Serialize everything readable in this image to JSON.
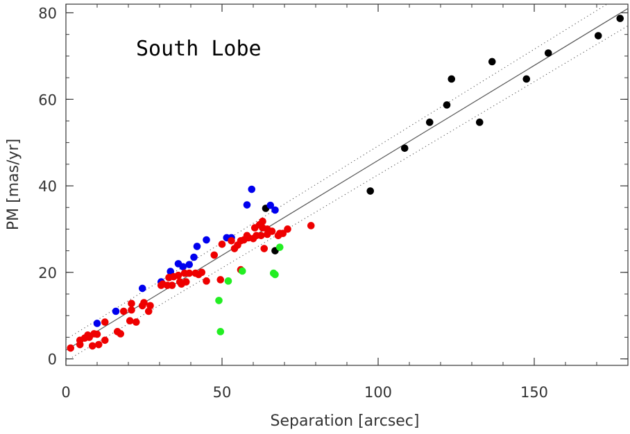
{
  "chart_data": {
    "type": "scatter",
    "title": "",
    "annotation": "South Lobe",
    "xlabel": "Separation [arcsec]",
    "ylabel": "PM [mas/yr]",
    "xlim": [
      0,
      180
    ],
    "ylim": [
      -1.5,
      82
    ],
    "x_ticks": [
      0,
      50,
      100,
      150
    ],
    "y_ticks": [
      0,
      20,
      40,
      60,
      80
    ],
    "x_minor_step": 10,
    "y_minor_step": 5,
    "colors": {
      "red": "#ee0000",
      "blue": "#0000ee",
      "green": "#22ee22",
      "black": "#000000",
      "line": "#555555",
      "axis": "#333333"
    },
    "lines": [
      {
        "name": "fit",
        "style": "solid",
        "points": [
          [
            0,
            2.0
          ],
          [
            180,
            81.0
          ]
        ]
      },
      {
        "name": "upper-bound",
        "style": "dotted",
        "points": [
          [
            0,
            4.5
          ],
          [
            180,
            85.0
          ]
        ]
      },
      {
        "name": "lower-bound",
        "style": "dotted",
        "points": [
          [
            0,
            -0.5
          ],
          [
            180,
            77.0
          ]
        ]
      }
    ],
    "series": [
      {
        "name": "black",
        "color": "#000000",
        "points": [
          [
            64,
            34.8
          ],
          [
            67,
            25.0
          ],
          [
            97.5,
            38.8
          ],
          [
            108.5,
            48.7
          ],
          [
            116.5,
            54.7
          ],
          [
            122,
            58.7
          ],
          [
            123.5,
            64.7
          ],
          [
            132.5,
            54.7
          ],
          [
            136.5,
            68.7
          ],
          [
            147.5,
            64.7
          ],
          [
            154.5,
            70.7
          ],
          [
            170.5,
            74.7
          ],
          [
            177.5,
            78.7
          ]
        ]
      },
      {
        "name": "blue",
        "color": "#0000ee",
        "points": [
          [
            10,
            8.2
          ],
          [
            16,
            11.0
          ],
          [
            24.5,
            16.3
          ],
          [
            30.5,
            17.8
          ],
          [
            33.5,
            20.2
          ],
          [
            36,
            22.0
          ],
          [
            37.5,
            21.3
          ],
          [
            39.5,
            21.8
          ],
          [
            41,
            23.5
          ],
          [
            42,
            26.0
          ],
          [
            45,
            27.5
          ],
          [
            51.5,
            28.0
          ],
          [
            53,
            28.0
          ],
          [
            58,
            35.6
          ],
          [
            59.5,
            39.2
          ],
          [
            65.5,
            35.5
          ],
          [
            67,
            34.4
          ]
        ]
      },
      {
        "name": "red",
        "color": "#ee0000",
        "points": [
          [
            1.5,
            2.5
          ],
          [
            4.5,
            3.3
          ],
          [
            4.5,
            4.3
          ],
          [
            6,
            4.8
          ],
          [
            7,
            5.5
          ],
          [
            7.5,
            5.0
          ],
          [
            8.5,
            3.0
          ],
          [
            9,
            5.8
          ],
          [
            10,
            5.7
          ],
          [
            10.5,
            3.3
          ],
          [
            12.5,
            8.5
          ],
          [
            12.5,
            4.3
          ],
          [
            16.5,
            6.3
          ],
          [
            17.5,
            5.8
          ],
          [
            18.5,
            11.0
          ],
          [
            20.5,
            8.8
          ],
          [
            21,
            12.8
          ],
          [
            21,
            11.3
          ],
          [
            22.5,
            8.5
          ],
          [
            24.5,
            12.3
          ],
          [
            25,
            13.0
          ],
          [
            26.5,
            11.0
          ],
          [
            27,
            12.3
          ],
          [
            30.5,
            17.0
          ],
          [
            31,
            17.3
          ],
          [
            32.5,
            17.0
          ],
          [
            33,
            18.8
          ],
          [
            34,
            17.0
          ],
          [
            34.5,
            19.0
          ],
          [
            36,
            19.3
          ],
          [
            36.5,
            17.8
          ],
          [
            37,
            17.3
          ],
          [
            38,
            19.8
          ],
          [
            38.5,
            17.8
          ],
          [
            39.5,
            19.8
          ],
          [
            41.5,
            19.8
          ],
          [
            42.5,
            19.5
          ],
          [
            43.5,
            20.0
          ],
          [
            45,
            18.0
          ],
          [
            47.5,
            24.0
          ],
          [
            49.5,
            18.3
          ],
          [
            50,
            26.5
          ],
          [
            53,
            27.3
          ],
          [
            54,
            25.5
          ],
          [
            55,
            26.3
          ],
          [
            56,
            20.6
          ],
          [
            56,
            27.3
          ],
          [
            57,
            27.5
          ],
          [
            58,
            28.5
          ],
          [
            58.5,
            28.0
          ],
          [
            60,
            27.8
          ],
          [
            60.5,
            30.3
          ],
          [
            61,
            28.5
          ],
          [
            62,
            31.0
          ],
          [
            62.5,
            28.5
          ],
          [
            63,
            31.8
          ],
          [
            63.5,
            25.5
          ],
          [
            63,
            30.3
          ],
          [
            64.5,
            30.0
          ],
          [
            64.5,
            28.8
          ],
          [
            66,
            29.5
          ],
          [
            68,
            28.5
          ],
          [
            68.5,
            29.0
          ],
          [
            69.5,
            29.0
          ],
          [
            71,
            30.0
          ],
          [
            78.5,
            30.8
          ]
        ]
      },
      {
        "name": "green",
        "color": "#22ee22",
        "points": [
          [
            49,
            13.5
          ],
          [
            49.5,
            6.3
          ],
          [
            52,
            18.0
          ],
          [
            56.5,
            20.3
          ],
          [
            66.5,
            19.8
          ],
          [
            67,
            19.5
          ],
          [
            68.5,
            25.8
          ]
        ]
      }
    ]
  }
}
